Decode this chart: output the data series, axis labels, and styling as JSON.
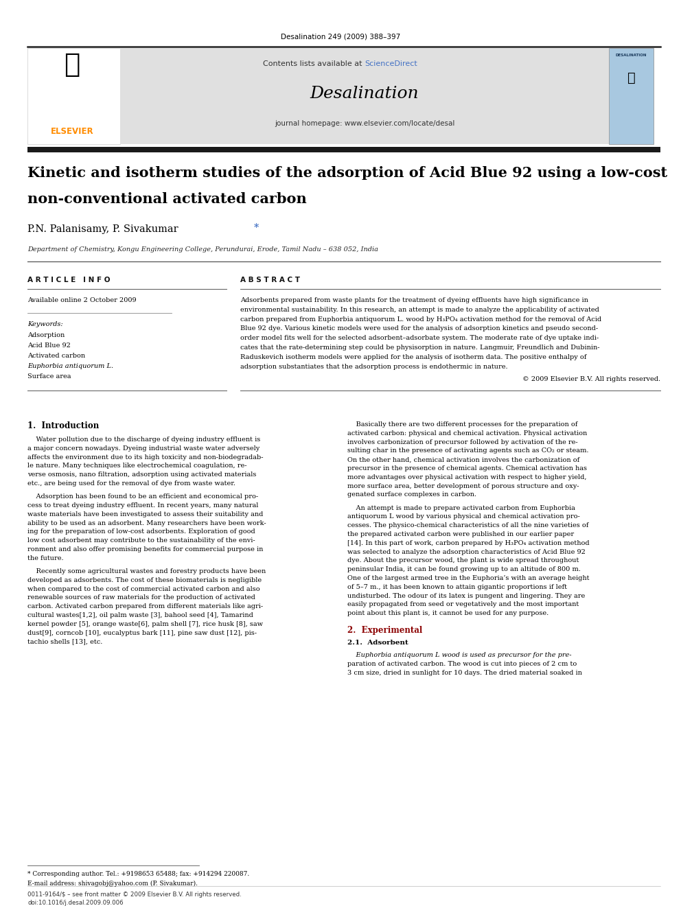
{
  "page_width": 9.92,
  "page_height": 13.23,
  "bg_color": "#ffffff",
  "journal_header_text": "Desalination 249 (2009) 388–397",
  "journal_name": "Desalination",
  "journal_homepage": "journal homepage: www.elsevier.com/locate/desal",
  "contents_line_pre": "Contents lists available at ",
  "contents_sciencedirect": "ScienceDirect",
  "sciencedirect_color": "#4472c4",
  "header_bg": "#e0e0e0",
  "article_title_line1": "Kinetic and isotherm studies of the adsorption of Acid Blue 92 using a low-cost",
  "article_title_line2": "non-conventional activated carbon",
  "authors": "P.N. Palanisamy, P. Sivakumar",
  "affiliation": "Department of Chemistry, Kongu Engineering College, Perundurai, Erode, Tamil Nadu – 638 052, India",
  "article_info_header": "A R T I C L E   I N F O",
  "abstract_header": "A B S T R A C T",
  "available_online": "Available online 2 October 2009",
  "keywords_label": "Keywords:",
  "keywords": [
    "Adsorption",
    "Acid Blue 92",
    "Activated carbon",
    "Euphorbia antiquorum L.",
    "Surface area"
  ],
  "keywords_italic": [
    false,
    false,
    false,
    true,
    false
  ],
  "abstract_lines": [
    "Adsorbents prepared from waste plants for the treatment of dyeing effluents have high significance in",
    "environmental sustainability. In this research, an attempt is made to analyze the applicability of activated",
    "carbon prepared from Euphorbia antiquorum L. wood by H₃PO₄ activation method for the removal of Acid",
    "Blue 92 dye. Various kinetic models were used for the analysis of adsorption kinetics and pseudo second-",
    "order model fits well for the selected adsorbent–adsorbate system. The moderate rate of dye uptake indi-",
    "cates that the rate-determining step could be physisorption in nature. Langmuir, Freundlich and Dubinin-",
    "Raduskevich isotherm models were applied for the analysis of isotherm data. The positive enthalpy of",
    "adsorption substantiates that the adsorption process is endothermic in nature."
  ],
  "copyright": "© 2009 Elsevier B.V. All rights reserved.",
  "section1_title": "1.  Introduction",
  "left_col_lines": [
    "    Water pollution due to the discharge of dyeing industry effluent is",
    "a major concern nowadays. Dyeing industrial waste water adversely",
    "affects the environment due to its high toxicity and non-biodegradab-",
    "le nature. Many techniques like electrochemical coagulation, re-",
    "verse osmosis, nano filtration, adsorption using activated materials",
    "etc., are being used for the removal of dye from waste water.",
    "",
    "    Adsorption has been found to be an efficient and economical pro-",
    "cess to treat dyeing industry effluent. In recent years, many natural",
    "waste materials have been investigated to assess their suitability and",
    "ability to be used as an adsorbent. Many researchers have been work-",
    "ing for the preparation of low-cost adsorbents. Exploration of good",
    "low cost adsorbent may contribute to the sustainability of the envi-",
    "ronment and also offer promising benefits for commercial purpose in",
    "the future.",
    "",
    "    Recently some agricultural wastes and forestry products have been",
    "developed as adsorbents. The cost of these biomaterials is negligible",
    "when compared to the cost of commercial activated carbon and also",
    "renewable sources of raw materials for the production of activated",
    "carbon. Activated carbon prepared from different materials like agri-",
    "cultural wastes[1,2], oil palm waste [3], bahool seed [4], Tamarind",
    "kernel powder [5], orange waste[6], palm shell [7], rice husk [8], saw",
    "dust[9], corncob [10], eucalyptus bark [11], pine saw dust [12], pis-",
    "tachio shells [13], etc."
  ],
  "right_col_lines": [
    "    Basically there are two different processes for the preparation of",
    "activated carbon: physical and chemical activation. Physical activation",
    "involves carbonization of precursor followed by activation of the re-",
    "sulting char in the presence of activating agents such as CO₂ or steam.",
    "On the other hand, chemical activation involves the carbonization of",
    "precursor in the presence of chemical agents. Chemical activation has",
    "more advantages over physical activation with respect to higher yield,",
    "more surface area, better development of porous structure and oxy-",
    "genated surface complexes in carbon.",
    "",
    "    An attempt is made to prepare activated carbon from Euphorbia",
    "antiquorum L wood by various physical and chemical activation pro-",
    "cesses. The physico-chemical characteristics of all the nine varieties of",
    "the prepared activated carbon were published in our earlier paper",
    "[14]. In this part of work, carbon prepared by H₃PO₄ activation method",
    "was selected to analyze the adsorption characteristics of Acid Blue 92",
    "dye. About the precursor wood, the plant is wide spread throughout",
    "peninsular India, it can be found growing up to an altitude of 800 m.",
    "One of the largest armed tree in the Euphoria’s with an average height",
    "of 5–7 m., it has been known to attain gigantic proportions if left",
    "undisturbed. The odour of its latex is pungent and lingering. They are",
    "easily propagated from seed or vegetatively and the most important",
    "point about this plant is, it cannot be used for any purpose."
  ],
  "section2_title": "2.  Experimental",
  "section2_title_color": "#8B0000",
  "section2_sub": "2.1.  Adsorbent",
  "section2_lines": [
    "    Euphorbia antiquorum L wood is used as precursor for the pre-",
    "paration of activated carbon. The wood is cut into pieces of 2 cm to",
    "3 cm size, dried in sunlight for 10 days. The dried material soaked in"
  ],
  "footnote_line1": "* Corresponding author. Tel.: +9198653 65488; fax: +914294 220087.",
  "footnote_line2": "E-mail address: shivagobj@yahoo.com (P. Sivakumar).",
  "footer_issn": "0011-9164/$ – see front matter © 2009 Elsevier B.V. All rights reserved.",
  "footer_doi": "doi:10.1016/j.desal.2009.09.006",
  "elsevier_color": "#FF8C00",
  "link_color": "#4472c4",
  "text_color": "#000000"
}
